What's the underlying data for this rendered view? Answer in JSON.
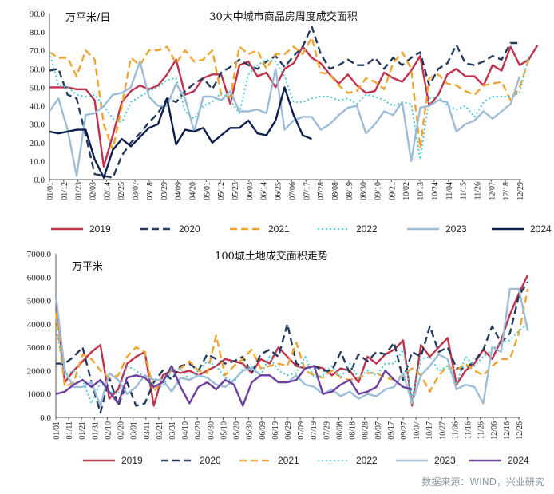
{
  "source_note": "数据来源：WIND，兴业研究",
  "colors": {
    "2019": "#c0334d",
    "2020": "#243b5e",
    "2021": "#f2a431",
    "2022": "#4fc9d6",
    "2023": "#9dbcd8",
    "2024_top": "#0e1f4d",
    "2024_bottom": "#6c3fa0"
  },
  "chart_data": [
    {
      "type": "line",
      "title": "30大中城市商品房周度成交面积",
      "unit": "万平米/日",
      "ylim": [
        0,
        90
      ],
      "yticks": [
        "0.0",
        "10.0",
        "20.0",
        "30.0",
        "40.0",
        "50.0",
        "60.0",
        "70.0",
        "80.0",
        "90.0"
      ],
      "x_tick_labels": [
        "01/01",
        "01/12",
        "01/23",
        "02/03",
        "02/14",
        "02/25",
        "03/07",
        "03/18",
        "03/29",
        "04/09",
        "04/20",
        "05/01",
        "05/12",
        "05/23",
        "06/03",
        "06/14",
        "06/25",
        "07/06",
        "07/17",
        "07/28",
        "08/08",
        "08/19",
        "08/30",
        "09/10",
        "09/21",
        "10/02",
        "10/13",
        "10/24",
        "11/04",
        "11/15",
        "11/26",
        "12/07",
        "12/18",
        "12/29"
      ],
      "x_range": [
        0,
        52
      ],
      "legend_position": "bottom",
      "series": [
        {
          "name": "2019",
          "style": "solid",
          "values": [
            50,
            50,
            50,
            49,
            49,
            43,
            7,
            24,
            42,
            48,
            51,
            49,
            51,
            57,
            65,
            46,
            48,
            55,
            57,
            57,
            41,
            62,
            64,
            56,
            58,
            50,
            60,
            63,
            72,
            66,
            63,
            57,
            52,
            57,
            51,
            47,
            48,
            58,
            55,
            53,
            59,
            67,
            40,
            46,
            57,
            60,
            56,
            56,
            51,
            62,
            59,
            72,
            62,
            65,
            73
          ]
        },
        {
          "name": "2020",
          "style": "dashed",
          "values": [
            59,
            60,
            46,
            44,
            24,
            3,
            2,
            1,
            13,
            20,
            25,
            31,
            36,
            44,
            42,
            48,
            52,
            55,
            49,
            58,
            61,
            65,
            62,
            60,
            64,
            67,
            61,
            67,
            72,
            83,
            68,
            60,
            62,
            65,
            62,
            62,
            66,
            60,
            66,
            62,
            66,
            69,
            51,
            60,
            63,
            73,
            63,
            62,
            64,
            67,
            65,
            74,
            74
          ]
        },
        {
          "name": "2021",
          "style": "dashed",
          "values": [
            69,
            66,
            66,
            56,
            70,
            65,
            30,
            16,
            40,
            66,
            62,
            70,
            70,
            72,
            63,
            70,
            64,
            65,
            70,
            46,
            45,
            72,
            68,
            70,
            60,
            68,
            68,
            72,
            68,
            77,
            58,
            57,
            51,
            47,
            48,
            55,
            53,
            49,
            63,
            69,
            60,
            17,
            55,
            57,
            52,
            51,
            48,
            46,
            51,
            52,
            53,
            43,
            50,
            65
          ]
        },
        {
          "name": "2022",
          "style": "dotted",
          "values": [
            69,
            51,
            50,
            46,
            45,
            46,
            40,
            33,
            31,
            42,
            45,
            48,
            50,
            54,
            55,
            37,
            33,
            40,
            42,
            47,
            43,
            36,
            57,
            62,
            65,
            64,
            56,
            42,
            42,
            44,
            45,
            45,
            43,
            44,
            41,
            46,
            45,
            43,
            40,
            42,
            41,
            11,
            44,
            45,
            40,
            38,
            40,
            34,
            42,
            45,
            45,
            45,
            47,
            67
          ]
        },
        {
          "name": "2023",
          "style": "solid",
          "values": [
            37,
            44,
            27,
            2,
            35,
            36,
            40,
            46,
            47,
            50,
            64,
            45,
            40,
            40,
            52,
            44,
            26,
            45,
            45,
            43,
            48,
            37,
            37,
            38,
            36,
            60,
            27,
            32,
            34,
            34,
            27,
            30,
            35,
            39,
            40,
            25,
            30,
            37,
            35,
            42,
            10,
            39,
            40,
            43,
            42,
            26,
            30,
            32,
            37,
            33,
            37,
            41,
            56
          ]
        },
        {
          "name": "2024",
          "style": "solid",
          "values": [
            26,
            25,
            26,
            27,
            27,
            11,
            1,
            16,
            22,
            18,
            23,
            28,
            30,
            44,
            19,
            27,
            26,
            28,
            20,
            24,
            28,
            28,
            32,
            25,
            24,
            32,
            50,
            35,
            24,
            22
          ]
        }
      ]
    },
    {
      "type": "line",
      "title": "100城土地成交面积走势",
      "unit": "万平米",
      "ylim": [
        0,
        7000
      ],
      "yticks": [
        "0.0",
        "1000.0",
        "2000.0",
        "3000.0",
        "4000.0",
        "5000.0",
        "6000.0",
        "7000.0"
      ],
      "x_tick_labels": [
        "01/01",
        "01/11",
        "01/21",
        "01/31",
        "02/10",
        "02/20",
        "03/01",
        "03/11",
        "03/21",
        "03/31",
        "04/10",
        "04/20",
        "04/30",
        "05/10",
        "05/20",
        "05/30",
        "06/09",
        "06/19",
        "06/29",
        "07/09",
        "07/19",
        "07/29",
        "08/08",
        "08/18",
        "08/28",
        "09/07",
        "09/17",
        "09/27",
        "10/07",
        "10/17",
        "10/27",
        "11/06",
        "11/16",
        "11/26",
        "12/06",
        "12/16",
        "12/26"
      ],
      "x_range": [
        0,
        52
      ],
      "legend_position": "bottom",
      "series": [
        {
          "name": "2019",
          "style": "solid",
          "values": [
            5200,
            1500,
            2000,
            2400,
            2800,
            3100,
            800,
            1200,
            2300,
            2600,
            2800,
            500,
            1800,
            2000,
            1900,
            2000,
            1800,
            2000,
            2200,
            2500,
            2400,
            2300,
            1900,
            2500,
            2300,
            3000,
            2600,
            2200,
            2100,
            2200,
            2100,
            1800,
            2100,
            2000,
            1500,
            2600,
            2300,
            2700,
            2900,
            3300,
            500,
            3100,
            2600,
            3000,
            3400,
            1400,
            2000,
            2300,
            2900,
            2500,
            3300,
            4400,
            5300,
            6100
          ]
        },
        {
          "name": "2020",
          "style": "dashed",
          "values": [
            2300,
            2300,
            2600,
            3000,
            1500,
            200,
            1700,
            500,
            1500,
            500,
            600,
            1500,
            2000,
            1600,
            2200,
            2300,
            2000,
            2700,
            2500,
            2300,
            2400,
            2600,
            1900,
            2700,
            2900,
            2600,
            4000,
            2300,
            2100,
            2200,
            2000,
            2000,
            2800,
            1900,
            2700,
            2400,
            2800,
            2700,
            3200,
            1600,
            2800,
            2600,
            3900,
            2800,
            3000,
            2100,
            2100,
            2400,
            2900,
            3900,
            3200,
            3600,
            5200,
            5800
          ]
        },
        {
          "name": "2021",
          "style": "dashed",
          "values": [
            4500,
            1300,
            1500,
            2700,
            2500,
            2000,
            1700,
            1800,
            2600,
            3000,
            2800,
            1100,
            1600,
            2000,
            2100,
            2400,
            2000,
            1900,
            3500,
            1800,
            2200,
            2500,
            2900,
            2100,
            2200,
            2300,
            2200,
            3200,
            2000,
            1800,
            1700,
            2000,
            1700,
            1600,
            1700,
            1900,
            1900,
            1700,
            1600,
            1800,
            2100,
            1800,
            1100,
            1800,
            2200,
            2000,
            2300,
            2000,
            1800,
            2200,
            2500,
            2500,
            3600,
            5500
          ]
        },
        {
          "name": "2022",
          "style": "dotted",
          "values": [
            3900,
            1800,
            2000,
            1600,
            600,
            1500,
            1100,
            1000,
            2200,
            2000,
            1700,
            1400,
            1300,
            2000,
            2100,
            1600,
            2000,
            2400,
            2200,
            1700,
            1500,
            2100,
            2200,
            1800,
            2600,
            2000,
            1800,
            1900,
            2600,
            1700,
            1800,
            2200,
            1700,
            2300,
            1700,
            2000,
            1800,
            2300,
            2300,
            2900,
            800,
            2500,
            2600,
            2000,
            2200,
            1400,
            2600,
            2200,
            2600,
            2900,
            3200,
            3300,
            3700,
            4000
          ]
        },
        {
          "name": "2023",
          "style": "solid",
          "values": [
            5200,
            2000,
            1300,
            1300,
            1500,
            500,
            1900,
            1600,
            1000,
            1300,
            1800,
            1600,
            1600,
            1100,
            1700,
            1600,
            1800,
            1700,
            1400,
            1300,
            1600,
            2000,
            2100,
            1800,
            1800,
            1500,
            1500,
            1800,
            1400,
            1300,
            1000,
            1200,
            900,
            1100,
            800,
            1000,
            900,
            1200,
            1300,
            1900,
            600,
            1800,
            2200,
            2700,
            2500,
            1200,
            1400,
            1300,
            600,
            3000,
            2800,
            5500,
            5500,
            3700
          ]
        },
        {
          "name": "2024",
          "style": "solid",
          "values": [
            1000,
            1100,
            1400,
            1600,
            1300,
            1600,
            1100,
            600,
            1700,
            1800,
            1700,
            1300,
            1500,
            2200,
            1300,
            600,
            1300,
            1500,
            1200,
            1600,
            1400,
            500,
            1500,
            1800,
            1800,
            1500,
            1500,
            1600,
            2100,
            2200,
            1000,
            1100,
            1400,
            1600,
            1000,
            1100,
            1300,
            2000,
            1600,
            1300,
            1200
          ]
        }
      ]
    }
  ]
}
